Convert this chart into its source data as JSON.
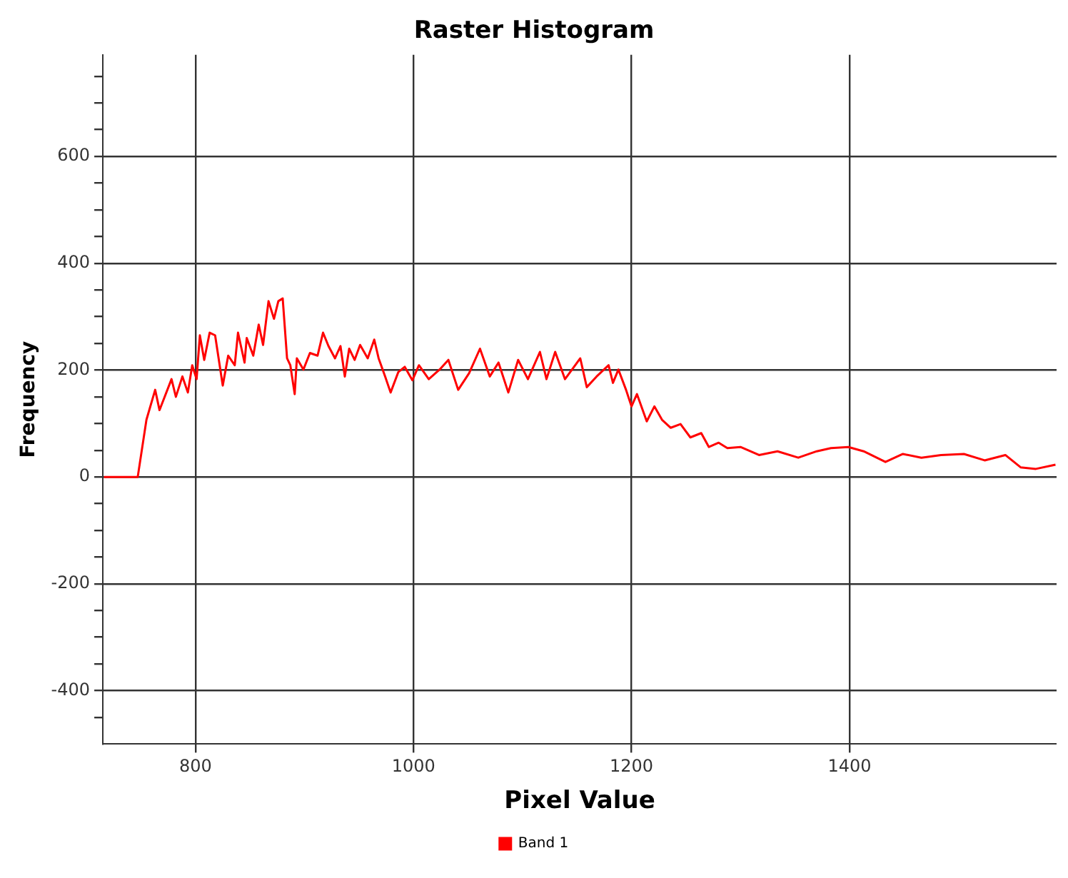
{
  "chart_data": {
    "type": "line",
    "title": "Raster Histogram",
    "xlabel": "Pixel Value",
    "ylabel": "Frequency",
    "xlim": [
      715,
      1590
    ],
    "xticks": [
      800,
      1000,
      1200,
      1400
    ],
    "ylim": [
      -500,
      790
    ],
    "yticks": [
      {
        "value": -450,
        "label": null
      },
      -400,
      {
        "value": -350,
        "label": null
      },
      {
        "value": -300,
        "label": null
      },
      {
        "value": -250,
        "label": null
      },
      -200,
      {
        "value": -150,
        "label": null
      },
      {
        "value": -100,
        "label": null
      },
      {
        "value": -50,
        "label": null
      },
      0,
      {
        "value": 50,
        "label": null
      },
      {
        "value": 100,
        "label": null
      },
      {
        "value": 150,
        "label": null
      },
      200,
      {
        "value": 250,
        "label": null
      },
      {
        "value": 300,
        "label": null
      },
      {
        "value": 350,
        "label": null
      },
      400,
      {
        "value": 450,
        "label": null
      },
      {
        "value": 500,
        "label": null
      },
      {
        "value": 550,
        "label": null
      },
      600,
      {
        "value": 650,
        "label": null
      },
      {
        "value": 700,
        "label": null
      },
      {
        "value": 750,
        "label": null
      }
    ],
    "grid": true,
    "legend": "bottom",
    "marker": "none",
    "line_style": "solid",
    "series": [
      {
        "name": "Band 1",
        "color": "#ff0000",
        "x": [
          716,
          747,
          755,
          763,
          767,
          778,
          782,
          788,
          793,
          797,
          801,
          804,
          808,
          813,
          818,
          825,
          830,
          836,
          839,
          845,
          847,
          853,
          858,
          862,
          867,
          872,
          876,
          880,
          884,
          887,
          891,
          893,
          899,
          905,
          912,
          917,
          922,
          928,
          933,
          937,
          941,
          946,
          951,
          958,
          964,
          968,
          974,
          979,
          986,
          992,
          999,
          1005,
          1014,
          1024,
          1032,
          1041,
          1051,
          1061,
          1070,
          1078,
          1087,
          1096,
          1105,
          1116,
          1122,
          1130,
          1139,
          1153,
          1159,
          1168,
          1179,
          1183,
          1188,
          1195,
          1200,
          1205,
          1214,
          1221,
          1228,
          1236,
          1245,
          1254,
          1264,
          1271,
          1280,
          1288,
          1300,
          1317,
          1334,
          1353,
          1370,
          1383,
          1399,
          1413,
          1433,
          1449,
          1466,
          1484,
          1505,
          1524,
          1543,
          1557,
          1571,
          1589
        ],
        "values": [
          0,
          0,
          107,
          163,
          125,
          183,
          150,
          188,
          158,
          209,
          183,
          265,
          219,
          270,
          265,
          171,
          227,
          209,
          270,
          214,
          260,
          227,
          285,
          247,
          329,
          296,
          329,
          334,
          222,
          209,
          155,
          222,
          201,
          232,
          227,
          270,
          245,
          222,
          245,
          188,
          240,
          219,
          247,
          222,
          257,
          222,
          188,
          158,
          196,
          206,
          181,
          209,
          183,
          201,
          219,
          163,
          194,
          240,
          188,
          214,
          158,
          219,
          183,
          234,
          183,
          234,
          183,
          222,
          168,
          188,
          209,
          176,
          201,
          163,
          132,
          155,
          104,
          132,
          107,
          92,
          99,
          74,
          82,
          56,
          64,
          54,
          56,
          41,
          48,
          36,
          48,
          54,
          56,
          48,
          28,
          43,
          36,
          41,
          43,
          31,
          41,
          18,
          15,
          23
        ]
      }
    ]
  }
}
